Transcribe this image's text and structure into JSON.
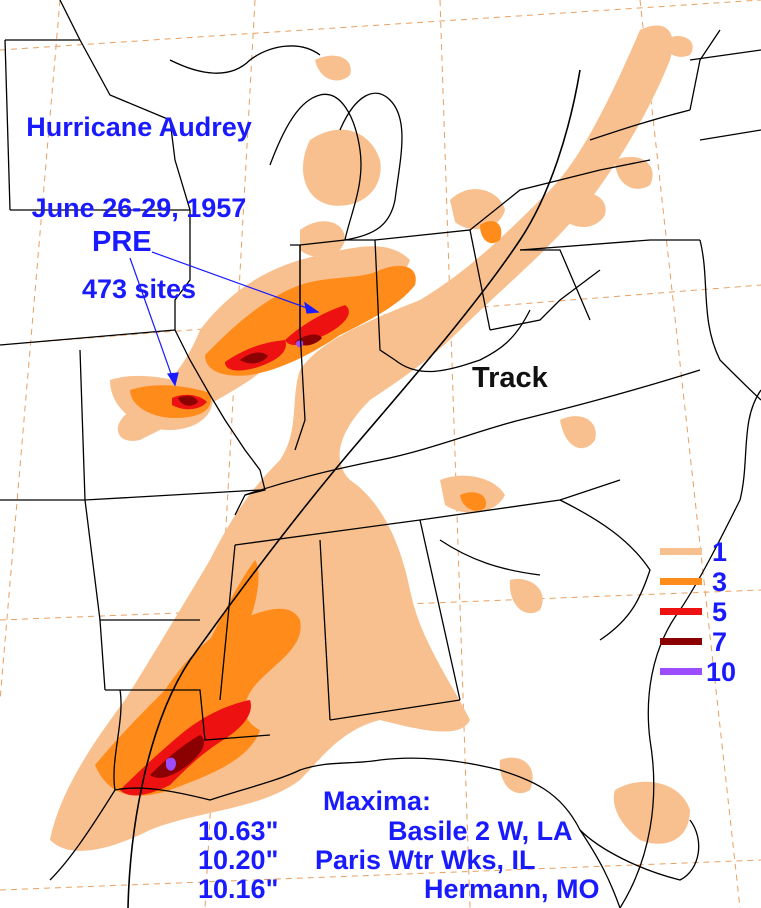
{
  "title": {
    "line1": "Hurricane Audrey",
    "line2": "June 26-29, 1957",
    "line3": "473 sites"
  },
  "labels": {
    "pre": "PRE",
    "track": "Track"
  },
  "maxima": {
    "heading": "Maxima:",
    "rows": [
      {
        "amount": "10.63\"",
        "location": "Basile 2 W, LA"
      },
      {
        "amount": "10.20\"",
        "location": "Paris Wtr Wks, IL"
      },
      {
        "amount": "10.16\"",
        "location": "Hermann, MO"
      }
    ]
  },
  "legend": [
    {
      "value": "1",
      "color": "#f9c08f"
    },
    {
      "value": "3",
      "color": "#ff8c1a"
    },
    {
      "value": "5",
      "color": "#ee1111"
    },
    {
      "value": "7",
      "color": "#8b0000"
    },
    {
      "value": "10",
      "color": "#9b4dff"
    }
  ],
  "colors": {
    "background": "#ffffff",
    "border": "#000000",
    "gridline": "#e8a060",
    "annotation": "#1a1aff"
  }
}
